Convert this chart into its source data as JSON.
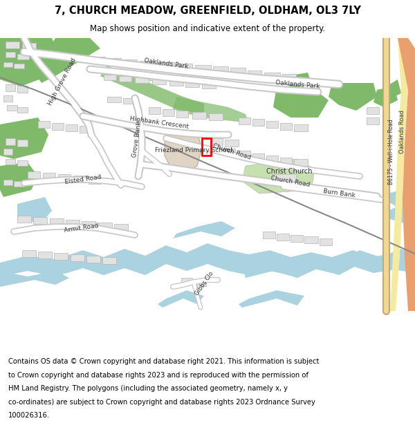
{
  "title_line1": "7, CHURCH MEADOW, GREENFIELD, OLDHAM, OL3 7LY",
  "title_line2": "Map shows position and indicative extent of the property.",
  "footer_lines": [
    "Contains OS data © Crown copyright and database right 2021. This information is subject",
    "to Crown copyright and database rights 2023 and is reproduced with the permission of",
    "HM Land Registry. The polygons (including the associated geometry, namely x, y",
    "co-ordinates) are subject to Crown copyright and database rights 2023 Ordnance Survey",
    "100026316."
  ],
  "bg_color": "#ffffff",
  "map_bg": "#f2efe9",
  "road_white": "#ffffff",
  "road_gray": "#c8c8c8",
  "water_color": "#aad3df",
  "green_dark": "#7fb96a",
  "green_light": "#c7e0b0",
  "school_color": "#e0d5c5",
  "road_yellow": "#f5eba0",
  "road_orange": "#e8a070",
  "title_fontsize": 10.5,
  "subtitle_fontsize": 8.5,
  "footer_fontsize": 7.2,
  "label_fontsize": 6.5,
  "label_color": "#333333"
}
